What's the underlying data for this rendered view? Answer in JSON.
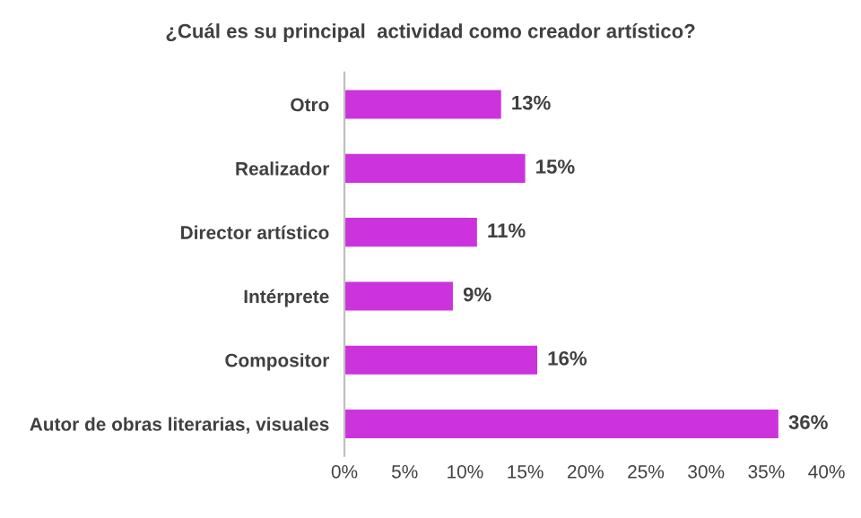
{
  "chart_data": {
    "type": "bar",
    "orientation": "horizontal",
    "title": "¿Cuál es su principal  actividad como creador artístico?",
    "categories": [
      "Otro",
      "Realizador",
      "Director artístico",
      "Intérprete",
      "Compositor",
      "Autor de obras literarias, visuales"
    ],
    "values": [
      13,
      15,
      11,
      9,
      16,
      36
    ],
    "value_labels": [
      "13%",
      "15%",
      "11%",
      "9%",
      "16%",
      "36%"
    ],
    "color": "#cc33dd",
    "xlim": [
      0,
      40
    ],
    "xticks": [
      {
        "value": 0,
        "label": "0%"
      },
      {
        "value": 5,
        "label": "5%"
      },
      {
        "value": 10,
        "label": "10%"
      },
      {
        "value": 15,
        "label": "15%"
      },
      {
        "value": 20,
        "label": "20%"
      },
      {
        "value": 25,
        "label": "25%"
      },
      {
        "value": 30,
        "label": "30%"
      },
      {
        "value": 35,
        "label": "35%"
      },
      {
        "value": 40,
        "label": "40%"
      }
    ],
    "grid": false,
    "legend": false
  }
}
